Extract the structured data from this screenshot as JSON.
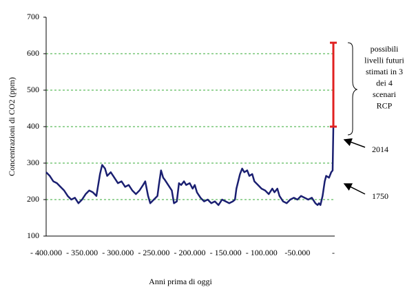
{
  "chart_data": {
    "type": "line",
    "x_label": "Anni prima di oggi",
    "y_label": "Concentrazioni di CO2 (ppm)",
    "xlim": [
      -400000,
      0
    ],
    "xticks": [
      {
        "value": -400000,
        "label": "- 400.000"
      },
      {
        "value": -350000,
        "label": "- 350.000"
      },
      {
        "value": -300000,
        "label": "- 300.000"
      },
      {
        "value": -250000,
        "label": "- 250.000"
      },
      {
        "value": -200000,
        "label": "- 200.000"
      },
      {
        "value": -150000,
        "label": "- 150.000"
      },
      {
        "value": -100000,
        "label": "- 100.000"
      },
      {
        "value": -50000,
        "label": "-50.000"
      },
      {
        "value": 0,
        "label": "-"
      }
    ],
    "ylim": [
      100,
      700
    ],
    "yticks": [
      100,
      200,
      300,
      400,
      500,
      600,
      700
    ],
    "grid": true,
    "grid_color": "#33aa33",
    "series": [
      {
        "color": "#1a1f71",
        "x": [
          -400000,
          -395000,
          -390000,
          -385000,
          -380000,
          -375000,
          -370000,
          -365000,
          -360000,
          -355000,
          -350000,
          -345000,
          -340000,
          -335000,
          -330000,
          -325000,
          -322000,
          -318000,
          -315000,
          -310000,
          -305000,
          -300000,
          -295000,
          -290000,
          -285000,
          -280000,
          -275000,
          -270000,
          -265000,
          -262000,
          -258000,
          -255000,
          -250000,
          -245000,
          -243000,
          -240000,
          -237000,
          -235000,
          -230000,
          -225000,
          -222000,
          -218000,
          -215000,
          -212000,
          -208000,
          -205000,
          -200000,
          -196000,
          -193000,
          -190000,
          -185000,
          -180000,
          -175000,
          -170000,
          -165000,
          -160000,
          -155000,
          -150000,
          -145000,
          -140000,
          -137000,
          -135000,
          -130000,
          -127000,
          -124000,
          -120000,
          -117000,
          -113000,
          -110000,
          -105000,
          -100000,
          -95000,
          -90000,
          -85000,
          -82000,
          -78000,
          -75000,
          -70000,
          -65000,
          -60000,
          -55000,
          -50000,
          -45000,
          -40000,
          -35000,
          -30000,
          -25000,
          -22000,
          -20000,
          -18000,
          -15000,
          -12000,
          -10000,
          -6000,
          -3000,
          -1000,
          0
        ],
        "values": [
          275,
          265,
          250,
          245,
          235,
          225,
          210,
          200,
          205,
          190,
          200,
          215,
          225,
          220,
          210,
          270,
          295,
          285,
          265,
          275,
          260,
          245,
          250,
          235,
          240,
          225,
          215,
          225,
          240,
          250,
          210,
          190,
          200,
          210,
          240,
          280,
          260,
          255,
          240,
          225,
          190,
          195,
          245,
          240,
          250,
          240,
          245,
          230,
          240,
          220,
          205,
          195,
          200,
          190,
          195,
          185,
          200,
          195,
          190,
          195,
          200,
          230,
          270,
          285,
          275,
          280,
          265,
          270,
          250,
          240,
          230,
          225,
          215,
          230,
          220,
          230,
          210,
          195,
          190,
          200,
          205,
          200,
          210,
          205,
          200,
          205,
          190,
          185,
          190,
          185,
          210,
          250,
          265,
          260,
          275,
          280,
          398
        ]
      }
    ],
    "range": {
      "low": 400,
      "high": 630,
      "color": "#e02020"
    },
    "annotations": [
      "2014",
      "1750",
      [
        "possibili",
        "livelli futuri",
        "stimati in 3",
        "dei 4",
        "scenari",
        "RCP"
      ]
    ]
  }
}
